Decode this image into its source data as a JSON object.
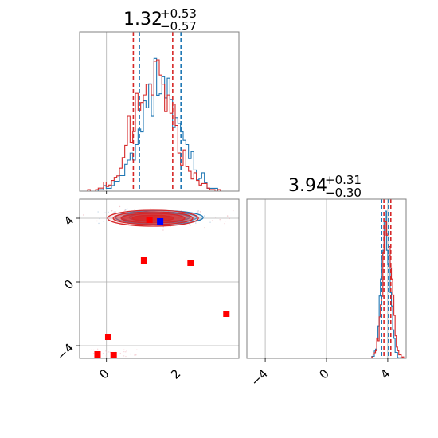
{
  "chart_data": [
    {
      "panel": "marginal-x",
      "type": "histogram",
      "title": {
        "value": "1.32",
        "plus": "+0.53",
        "minus": "−0.57"
      },
      "xlim": [
        -0.75,
        3.7
      ],
      "series": [
        {
          "color": "#1f77b4",
          "quantiles": [
            0.92,
            2.08
          ]
        },
        {
          "color": "#d62728",
          "quantiles": [
            0.75,
            1.85
          ]
        }
      ]
    },
    {
      "panel": "joint",
      "type": "scatter",
      "xlim": [
        -0.75,
        3.7
      ],
      "ylim": [
        -4.8,
        5.2
      ],
      "xticks": [
        "0",
        "2"
      ],
      "yticks": [
        "4",
        "0",
        "−4"
      ],
      "ellipse_center": [
        1.3,
        4.0
      ],
      "red_markers": [
        {
          "x": 1.05,
          "y": 1.35
        },
        {
          "x": 2.35,
          "y": 1.2
        },
        {
          "x": 3.35,
          "y": -2.0
        },
        {
          "x": 0.05,
          "y": -3.45
        },
        {
          "x": -0.25,
          "y": -4.55
        },
        {
          "x": 0.2,
          "y": -4.6
        },
        {
          "x": 1.2,
          "y": 3.9
        }
      ],
      "blue_markers": [
        {
          "x": 1.5,
          "y": 3.8
        }
      ]
    },
    {
      "panel": "marginal-y",
      "type": "histogram",
      "title": {
        "value": "3.94",
        "plus": "+0.31",
        "minus": "−0.30"
      },
      "xlim": [
        -5.2,
        5.2
      ],
      "xticks": [
        "−4",
        "0",
        "4"
      ],
      "series": [
        {
          "color": "#1f77b4",
          "quantiles": [
            3.6,
            4.05
          ]
        },
        {
          "color": "#d62728",
          "quantiles": [
            3.75,
            4.2
          ]
        }
      ]
    }
  ],
  "colors": {
    "series_a": "#1f77b4",
    "series_b": "#d62728",
    "marker_red": "#ff0000",
    "marker_blue": "#0000ff"
  }
}
